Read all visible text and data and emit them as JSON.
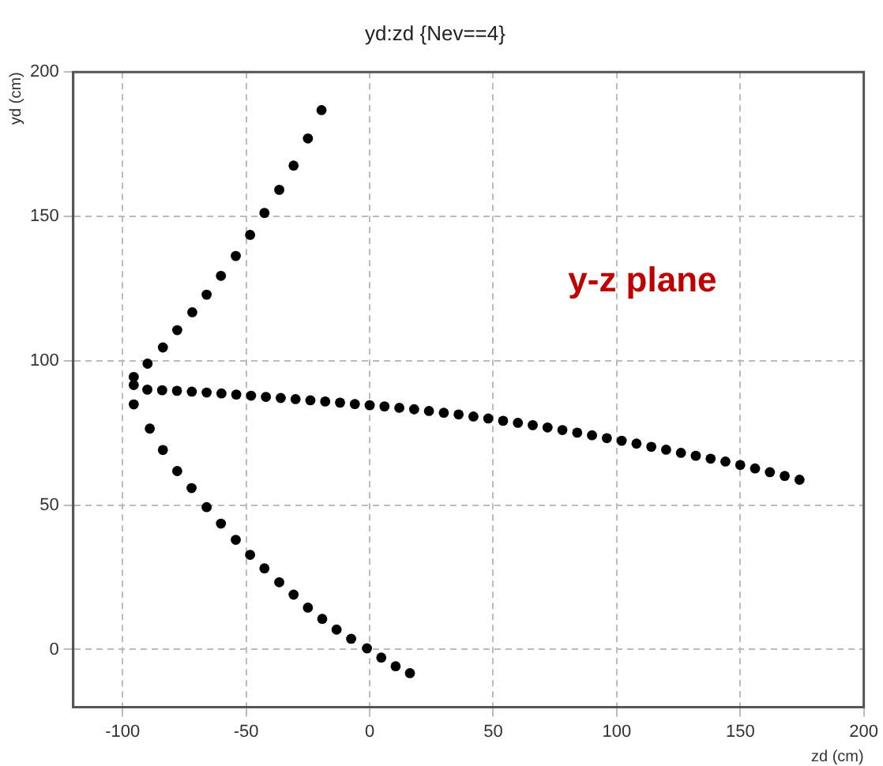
{
  "chart_data": {
    "type": "scatter",
    "title": "yd:zd {Nev==4}",
    "xlabel": "zd (cm)",
    "ylabel": "yd (cm)",
    "annotations": [
      "y-z plane"
    ],
    "xlim": [
      -120,
      200
    ],
    "ylim": [
      -20,
      200
    ],
    "xticks": [
      -100,
      -50,
      0,
      50,
      100,
      150,
      200
    ],
    "yticks": [
      0,
      50,
      100,
      150,
      200
    ],
    "grid": true,
    "marker": "circle",
    "legend": false,
    "series": [
      {
        "color": "#000000",
        "x": [
          -19.5,
          -25,
          -30.8,
          -36.6,
          -42.6,
          -48.4,
          -54.2,
          -60.2,
          -66,
          -71.8,
          -77.9,
          -83.7,
          -89.9
        ],
        "values": [
          186.8,
          177,
          167.6,
          159.2,
          151.2,
          143.6,
          136.3,
          129.4,
          122.9,
          116.8,
          110.6,
          104.6,
          99
        ]
      },
      {
        "color": "#000000",
        "x": [
          -95.5,
          -95.5,
          -95.5,
          -90,
          -84,
          -78,
          -72,
          -66,
          -60,
          -54,
          -48,
          -42,
          -36,
          -30,
          -24,
          -18,
          -12,
          -6,
          0,
          6,
          12,
          18,
          24,
          30,
          36,
          42,
          48,
          54,
          60,
          66,
          72,
          78,
          84,
          90,
          96,
          102,
          108,
          114,
          120,
          126,
          132,
          138,
          144,
          150,
          156,
          162,
          168,
          174
        ],
        "values": [
          94.4,
          91.6,
          84.9,
          90,
          89.8,
          89.6,
          89.3,
          89,
          88.7,
          88.3,
          87.9,
          87.5,
          87.1,
          86.7,
          86.3,
          85.9,
          85.5,
          85,
          84.6,
          84.2,
          83.7,
          83.2,
          82.6,
          82,
          81.4,
          80.7,
          80,
          79.2,
          78.5,
          77.7,
          76.9,
          76,
          75.1,
          74.2,
          73.2,
          72.3,
          71.3,
          70.2,
          69.2,
          68.1,
          67.1,
          66.1,
          65.1,
          63.9,
          62.7,
          61.4,
          60.1,
          58.8
        ]
      },
      {
        "color": "#000000",
        "x": [
          -89,
          -83.7,
          -77.9,
          -72.1,
          -66,
          -60.2,
          -54.2,
          -48.4,
          -42.6,
          -36.6,
          -30.8,
          -25,
          -19.2,
          -13.4,
          -7.5,
          -1.1,
          4.7,
          10.5,
          16.3
        ],
        "values": [
          76.5,
          69.1,
          61.8,
          55.9,
          49.3,
          43.6,
          38,
          32.8,
          28.1,
          23.3,
          19,
          14.5,
          10.6,
          6.9,
          3.7,
          0.4,
          -2.8,
          -5.8,
          -8.2
        ]
      }
    ]
  }
}
